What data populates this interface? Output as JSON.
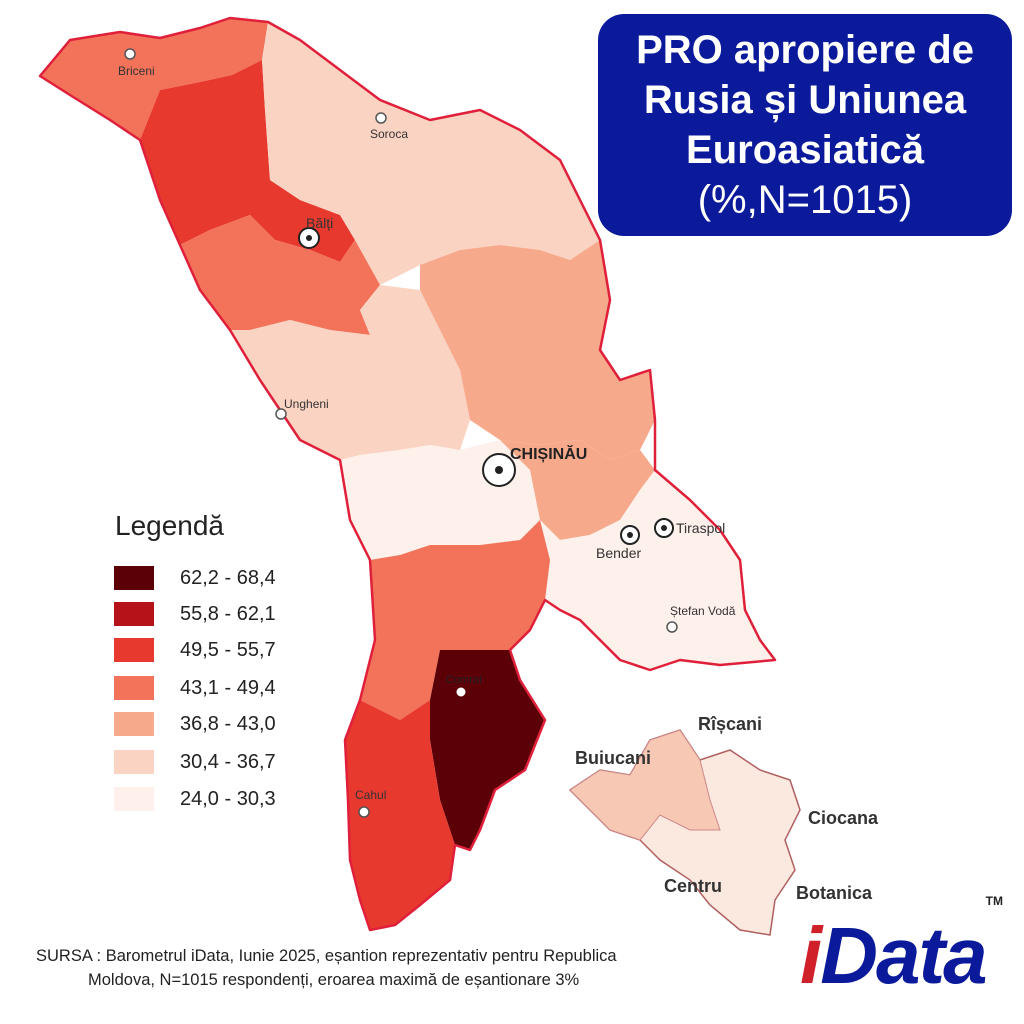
{
  "title": {
    "line1": "PRO apropiere de",
    "line2": "Rusia și Uniunea",
    "line3": "Euroasiatică",
    "line4": "(%,N=1015)"
  },
  "legend": {
    "title": "Legendă",
    "items": [
      {
        "label": "62,2 - 68,4",
        "color": "#5c0008"
      },
      {
        "label": "55,8 - 62,1",
        "color": "#b51319"
      },
      {
        "label": "49,5 - 55,7",
        "color": "#e8392f"
      },
      {
        "label": "43,1 - 49,4",
        "color": "#f2735a"
      },
      {
        "label": "36,8 - 43,0",
        "color": "#f7a98c"
      },
      {
        "label": "30,4 - 36,7",
        "color": "#fbd3c2"
      },
      {
        "label": "24,0 - 30,3",
        "color": "#fef0ea"
      }
    ]
  },
  "cities": {
    "briceni": "Briceni",
    "soroca": "Soroca",
    "balti": "Bălți",
    "ungheni": "Ungheni",
    "chisinau": "CHIȘINĂU",
    "bender": "Bender",
    "tiraspol": "Tiraspol",
    "stefan_voda": "Ștefan Vodă",
    "comrat": "Comrat",
    "cahul": "Cahul"
  },
  "chisinau_sectors": {
    "riscani": "Rîșcani",
    "buiucani": "Buiucani",
    "ciocana": "Ciocana",
    "centru": "Centru",
    "botanica": "Botanica"
  },
  "source": {
    "line1": "SURSA : Barometrul iData, Iunie 2025, eșantion reprezentativ pentru Republica",
    "line2": "Moldova, N=1015 respondenți, eroarea maximă de eșantionare 3%"
  },
  "logo": {
    "text_i": "i",
    "text_rest": "Data",
    "tm": "TM"
  }
}
